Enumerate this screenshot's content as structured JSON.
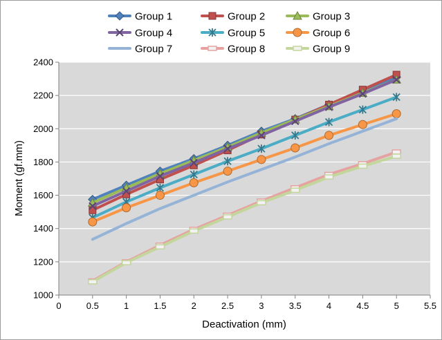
{
  "chart_data": {
    "type": "line",
    "xlabel": "Deactivation  (mm)",
    "ylabel": "Moment (gf.mm)",
    "xlim": [
      0,
      5.5
    ],
    "ylim": [
      1000,
      2400
    ],
    "x_ticks": [
      0,
      0.5,
      1,
      1.5,
      2,
      2.5,
      3,
      3.5,
      4,
      4.5,
      5,
      5.5
    ],
    "y_ticks": [
      1000,
      1200,
      1400,
      1600,
      1800,
      2000,
      2200,
      2400
    ],
    "grid": true,
    "legend_position": "top",
    "x": [
      0.5,
      1,
      1.5,
      2,
      2.5,
      3,
      3.5,
      4,
      4.5,
      5
    ],
    "series": [
      {
        "name": "Group 1",
        "color": "#4f81bd",
        "marker": "diamond",
        "values": [
          1575,
          1660,
          1745,
          1820,
          1900,
          1985,
          2060,
          2145,
          2225,
          2310
        ]
      },
      {
        "name": "Group 2",
        "color": "#c0504d",
        "marker": "square",
        "values": [
          1510,
          1605,
          1695,
          1780,
          1870,
          1965,
          2055,
          2145,
          2235,
          2325
        ]
      },
      {
        "name": "Group 3",
        "color": "#9bbb59",
        "marker": "triangle",
        "values": [
          1555,
          1645,
          1730,
          1810,
          1890,
          1975,
          2055,
          2135,
          2215,
          2295
        ]
      },
      {
        "name": "Group 4",
        "color": "#8064a2",
        "marker": "x",
        "values": [
          1535,
          1625,
          1715,
          1795,
          1880,
          1960,
          2045,
          2130,
          2210,
          2295
        ]
      },
      {
        "name": "Group 5",
        "color": "#4bacc6",
        "marker": "star",
        "values": [
          1465,
          1560,
          1645,
          1725,
          1805,
          1880,
          1960,
          2040,
          2115,
          2190
        ]
      },
      {
        "name": "Group 6",
        "color": "#f79646",
        "marker": "circle",
        "values": [
          1440,
          1525,
          1600,
          1675,
          1745,
          1815,
          1885,
          1960,
          2025,
          2090
        ]
      },
      {
        "name": "Group 7",
        "color": "#95b3d7",
        "marker": "none",
        "values": [
          1335,
          1430,
          1520,
          1600,
          1680,
          1755,
          1830,
          1910,
          1985,
          2060
        ]
      },
      {
        "name": "Group 8",
        "color": "#e6a2a0",
        "marker": "dash",
        "values": [
          1085,
          1200,
          1300,
          1395,
          1480,
          1565,
          1645,
          1725,
          1790,
          1860
        ]
      },
      {
        "name": "Group 9",
        "color": "#c3d69b",
        "marker": "dash",
        "values": [
          1080,
          1195,
          1290,
          1385,
          1470,
          1555,
          1630,
          1710,
          1775,
          1835
        ]
      }
    ]
  }
}
